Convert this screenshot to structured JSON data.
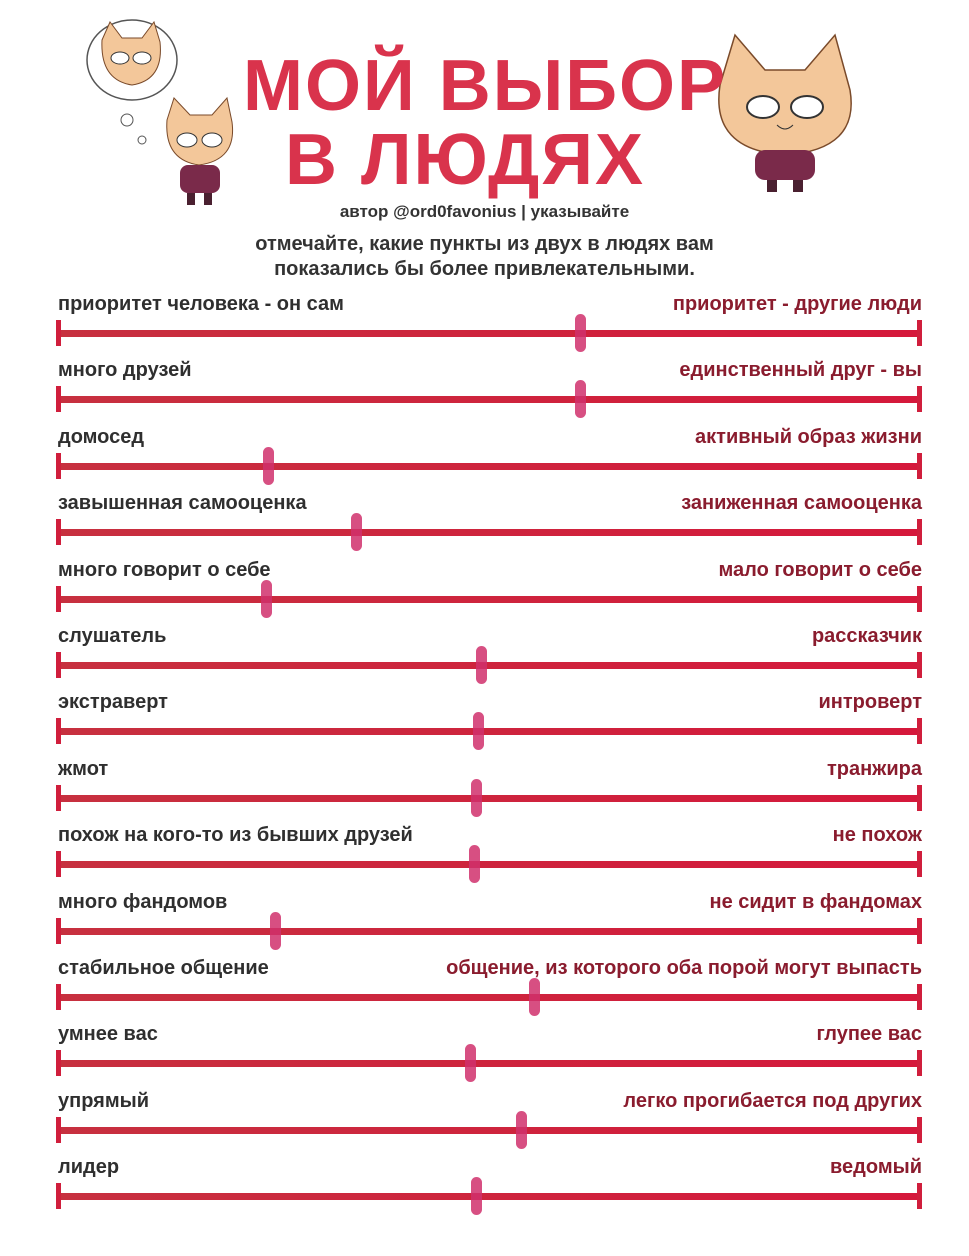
{
  "title": {
    "line1": "МОЙ ВЫБОР",
    "line2": "В ЛЮДЯХ"
  },
  "author": "автор @ord0favonius | указывайте",
  "instructions": {
    "line1": "отмечайте, какие пункты из двух в людях вам",
    "line2": "показались бы более привлекательными."
  },
  "colors": {
    "title": "#d9334c",
    "line": "#d01e3c",
    "marker": "#d0306c",
    "right_label": "#8a1c2e"
  },
  "scales": [
    {
      "left": "приоритет человека - он сам",
      "right": "приоритет - другие люди",
      "mark": 0.606
    },
    {
      "left": "много друзей",
      "right": "единственный друг - вы",
      "mark": 0.606
    },
    {
      "left": "домосед",
      "right": "активный образ жизни",
      "mark": 0.244
    },
    {
      "left": "завышенная самооценка",
      "right": "заниженная самооценка",
      "mark": 0.346
    },
    {
      "left": "много говорит о себе",
      "right": "мало говорит о себе",
      "mark": 0.241
    },
    {
      "left": "слушатель",
      "right": "рассказчик",
      "mark": 0.491
    },
    {
      "left": "экстраверт",
      "right": "интроверт",
      "mark": 0.487
    },
    {
      "left": "жмот",
      "right": "транжира",
      "mark": 0.485
    },
    {
      "left": "похож на кого-то из бывших друзей",
      "right": "не похож",
      "mark": 0.483
    },
    {
      "left": "много фандомов",
      "right": "не сидит в фандомах",
      "mark": 0.252
    },
    {
      "left": "стабильное общение",
      "right": "общение, из которого оба порой могут выпасть",
      "mark": 0.552
    },
    {
      "left": "умнее вас",
      "right": "глупее вас",
      "mark": 0.478
    },
    {
      "left": "упрямый",
      "right": "легко прогибается под других",
      "mark": 0.537
    },
    {
      "left": "лидер",
      "right": "ведомый",
      "mark": 0.485
    }
  ]
}
